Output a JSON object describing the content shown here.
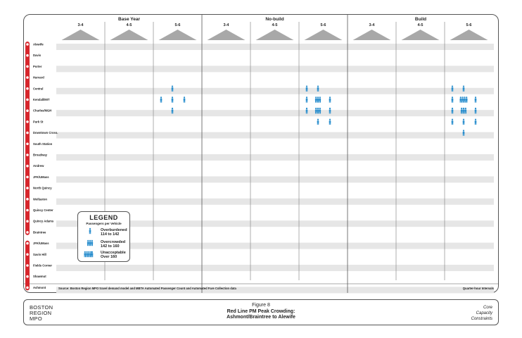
{
  "chart_data": {
    "type": "pictogram-matrix",
    "title": "Red Line PM Peak Crowding:",
    "subtitle": "Ashmont/Braintree to Alewife",
    "groups": [
      {
        "name": "Base Year",
        "columns": [
          "3-4",
          "4-5",
          "5-6"
        ]
      },
      {
        "name": "No-build",
        "columns": [
          "3-4",
          "4-5",
          "5-6"
        ]
      },
      {
        "name": "Build",
        "columns": [
          "3-4",
          "4-5",
          "5-6"
        ]
      }
    ],
    "stations": [
      "Alewife",
      "Davis",
      "Porter",
      "Harvard",
      "Central",
      "Kendall/MIT",
      "Charles/MGH",
      "Park St",
      "Downtown Cross.",
      "South Station",
      "Broadway",
      "Andrew",
      "JFK/UMass",
      "North Quincy",
      "Wollaston",
      "Quincy Center",
      "Quincy Adams",
      "Braintree",
      "JFK/UMass",
      "Savin Hill",
      "Fields Corner",
      "Shawmut",
      "Ashmont"
    ],
    "crowding_levels": {
      "1": "Overburdened",
      "2": "Overcrowded",
      "3": "Unacceptable"
    },
    "cells": [
      {
        "station": "Central",
        "group": "Base Year",
        "column": "5-6",
        "positions": [
          0,
          1,
          0
        ]
      },
      {
        "station": "Kendall/MIT",
        "group": "Base Year",
        "column": "5-6",
        "positions": [
          1,
          1,
          1
        ]
      },
      {
        "station": "Charles/MGH",
        "group": "Base Year",
        "column": "5-6",
        "positions": [
          0,
          1,
          0
        ]
      },
      {
        "station": "Central",
        "group": "No-build",
        "column": "5-6",
        "positions": [
          1,
          1,
          0
        ]
      },
      {
        "station": "Kendall/MIT",
        "group": "No-build",
        "column": "5-6",
        "positions": [
          1,
          2,
          1
        ]
      },
      {
        "station": "Charles/MGH",
        "group": "No-build",
        "column": "5-6",
        "positions": [
          1,
          2,
          1
        ]
      },
      {
        "station": "Park St",
        "group": "No-build",
        "column": "5-6",
        "positions": [
          0,
          1,
          1
        ]
      },
      {
        "station": "Central",
        "group": "Build",
        "column": "5-6",
        "positions": [
          1,
          1,
          0
        ]
      },
      {
        "station": "Kendall/MIT",
        "group": "Build",
        "column": "5-6",
        "positions": [
          1,
          3,
          1
        ]
      },
      {
        "station": "Charles/MGH",
        "group": "Build",
        "column": "5-6",
        "positions": [
          1,
          2,
          1
        ]
      },
      {
        "station": "Park St",
        "group": "Build",
        "column": "5-6",
        "positions": [
          1,
          1,
          1
        ]
      },
      {
        "station": "Downtown Cross.",
        "group": "Build",
        "column": "5-6",
        "positions": [
          0,
          1,
          0
        ]
      }
    ],
    "colors": {
      "line": "#d7262c",
      "icon": "#2b8fce",
      "band": "#e6e6e6",
      "triangle": "#a8a8a8"
    }
  },
  "legend": {
    "title": "LEGEND",
    "subtitle": "Passengers per Vehicle",
    "items": [
      {
        "label": "Overburdened",
        "range": "114 to 142"
      },
      {
        "label": "Overcrowded",
        "range": "142 to 160"
      },
      {
        "label": "Unacceptable",
        "range": "Over 160"
      }
    ]
  },
  "notes": {
    "source": "Source: Boston Region MPO travel demand model and MBTA Automated Passenger Count and Automated Fare Collection data",
    "interval": "Quarter-hour Intervals"
  },
  "footer": {
    "org": [
      "BOSTON",
      "REGION",
      "MPO"
    ],
    "figure": "Figure 8",
    "title": "Red Line PM Peak Crowding:",
    "subtitle": "Ashmont/Braintree to Alewife",
    "series": [
      "Core",
      "Capacity",
      "Constraints"
    ]
  }
}
